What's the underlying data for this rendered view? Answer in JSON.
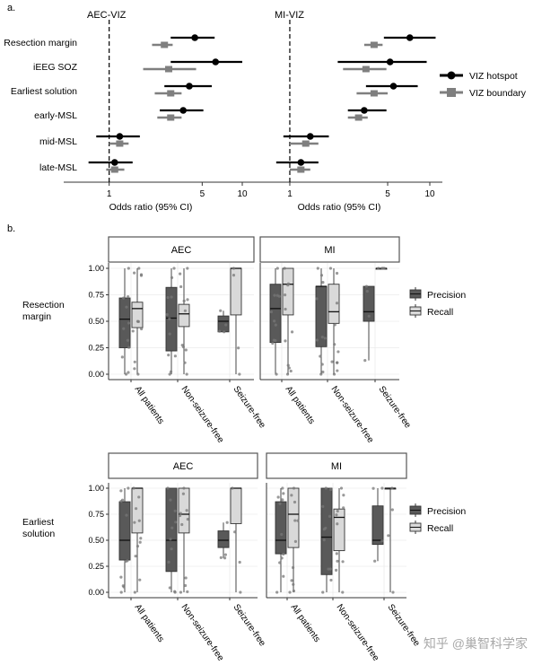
{
  "panel_labels": {
    "a": "a.",
    "b": "b."
  },
  "watermark": "知乎 @巢智科学家",
  "colors": {
    "hotspot": "#000000",
    "boundary": "#7f7f7f",
    "precision": "#595959",
    "recall": "#d9d9d9",
    "point": "#777777"
  },
  "forest": {
    "rows": [
      "Resection margin",
      "iEEG SOZ",
      "Earliest solution",
      "early-MSL",
      "mid-MSL",
      "late-MSL"
    ],
    "xlabel": "Odds ratio (95% CI)",
    "ticks": [
      1,
      5,
      10
    ],
    "legend": {
      "hotspot": "VIZ hotspot",
      "boundary": "VIZ boundary"
    }
  },
  "box": {
    "yticks": [
      "0.00",
      "0.25",
      "0.50",
      "0.75",
      "1.00"
    ],
    "xcats": [
      "All patients",
      "Non-seizure-free",
      "Seizure-free"
    ],
    "legend": {
      "precision": "Precision",
      "recall": "Recall"
    },
    "rows": [
      {
        "label_lines": [
          "Resection",
          "margin"
        ],
        "strips": [
          "AEC",
          "MI"
        ]
      },
      {
        "label_lines": [
          "Earliest",
          "solution"
        ],
        "strips": [
          "AEC",
          "MI"
        ]
      }
    ]
  },
  "chart_data": [
    {
      "type": "forest",
      "title": "AEC-VIZ",
      "xlabel": "Odds ratio (95% CI)",
      "xscale": "log",
      "reference_line": 1,
      "categories": [
        "Resection margin",
        "iEEG SOZ",
        "Earliest solution",
        "early-MSL",
        "mid-MSL",
        "late-MSL"
      ],
      "series": [
        {
          "name": "VIZ hotspot",
          "estimate": [
            4.4,
            6.3,
            4.0,
            3.6,
            1.2,
            1.1
          ],
          "ci_low": [
            2.9,
            2.9,
            2.6,
            2.4,
            0.8,
            0.7
          ],
          "ci_high": [
            6.2,
            10.0,
            5.9,
            5.1,
            1.7,
            1.5
          ]
        },
        {
          "name": "VIZ boundary",
          "estimate": [
            2.6,
            2.8,
            2.9,
            2.9,
            1.2,
            1.1
          ],
          "ci_low": [
            2.1,
            1.8,
            2.2,
            2.3,
            1.0,
            0.95
          ],
          "ci_high": [
            3.0,
            4.5,
            3.5,
            3.5,
            1.4,
            1.3
          ]
        }
      ]
    },
    {
      "type": "forest",
      "title": "MI-VIZ",
      "xlabel": "Odds ratio (95% CI)",
      "xscale": "log",
      "reference_line": 1,
      "categories": [
        "Resection margin",
        "iEEG SOZ",
        "Earliest solution",
        "early-MSL",
        "mid-MSL",
        "late-MSL"
      ],
      "series": [
        {
          "name": "VIZ hotspot",
          "estimate": [
            7.2,
            5.2,
            5.5,
            3.4,
            1.4,
            1.2
          ],
          "ci_low": [
            4.7,
            2.2,
            3.5,
            2.6,
            0.9,
            0.8
          ],
          "ci_high": [
            11.0,
            9.5,
            8.2,
            4.9,
            1.9,
            1.6
          ]
        },
        {
          "name": "VIZ boundary",
          "estimate": [
            4.0,
            3.5,
            4.0,
            3.1,
            1.3,
            1.2
          ],
          "ci_low": [
            3.4,
            2.4,
            3.0,
            2.6,
            1.0,
            1.0
          ],
          "ci_high": [
            4.6,
            4.9,
            5.0,
            3.6,
            1.6,
            1.4
          ]
        }
      ]
    },
    {
      "type": "boxplot",
      "row": "Resection margin",
      "panel": "AEC",
      "categories": [
        "All patients",
        "Non-seizure-free",
        "Seizure-free"
      ],
      "ylim": [
        0,
        1
      ],
      "series": [
        {
          "name": "Precision",
          "q1": [
            0.25,
            0.22,
            0.4
          ],
          "median": [
            0.52,
            0.53,
            0.5
          ],
          "q3": [
            0.72,
            0.82,
            0.55
          ],
          "whisker_low": [
            0.0,
            0.0,
            0.4
          ],
          "whisker_high": [
            1.0,
            1.0,
            0.6
          ]
        },
        {
          "name": "Recall",
          "q1": [
            0.44,
            0.45,
            0.56
          ],
          "median": [
            0.62,
            0.57,
            1.0
          ],
          "q3": [
            0.68,
            0.66,
            1.0
          ],
          "whisker_low": [
            0.0,
            0.0,
            0.0
          ],
          "whisker_high": [
            1.0,
            1.0,
            1.0
          ]
        }
      ]
    },
    {
      "type": "boxplot",
      "row": "Resection margin",
      "panel": "MI",
      "categories": [
        "All patients",
        "Non-seizure-free",
        "Seizure-free"
      ],
      "ylim": [
        0,
        1
      ],
      "series": [
        {
          "name": "Precision",
          "q1": [
            0.3,
            0.26,
            0.5
          ],
          "median": [
            0.62,
            0.83,
            0.59
          ],
          "q3": [
            0.85,
            0.83,
            0.83
          ],
          "whisker_low": [
            0.0,
            0.0,
            0.13
          ],
          "whisker_high": [
            1.0,
            1.0,
            0.83
          ]
        },
        {
          "name": "Recall",
          "q1": [
            0.56,
            0.48,
            1.0
          ],
          "median": [
            0.85,
            0.59,
            1.0
          ],
          "q3": [
            1.0,
            0.85,
            1.0
          ],
          "whisker_low": [
            0.0,
            0.0,
            1.0
          ],
          "whisker_high": [
            1.0,
            1.0,
            1.0
          ]
        }
      ]
    },
    {
      "type": "boxplot",
      "row": "Earliest solution",
      "panel": "AEC",
      "categories": [
        "All patients",
        "Non-seizure-free",
        "Seizure-free"
      ],
      "ylim": [
        0,
        1
      ],
      "series": [
        {
          "name": "Precision",
          "q1": [
            0.31,
            0.2,
            0.43
          ],
          "median": [
            0.5,
            0.5,
            0.5
          ],
          "q3": [
            0.87,
            1.0,
            0.59
          ],
          "whisker_low": [
            0.0,
            0.0,
            0.33
          ],
          "whisker_high": [
            1.0,
            1.0,
            0.67
          ]
        },
        {
          "name": "Recall",
          "q1": [
            0.57,
            0.57,
            0.66
          ],
          "median": [
            1.0,
            0.75,
            1.0
          ],
          "q3": [
            1.0,
            1.0,
            1.0
          ],
          "whisker_low": [
            0.0,
            0.0,
            0.0
          ],
          "whisker_high": [
            1.0,
            1.0,
            1.0
          ]
        }
      ]
    },
    {
      "type": "boxplot",
      "row": "Earliest solution",
      "panel": "MI",
      "categories": [
        "All patients",
        "Non-seizure-free",
        "Seizure-free"
      ],
      "ylim": [
        0,
        1
      ],
      "series": [
        {
          "name": "Precision",
          "q1": [
            0.37,
            0.17,
            0.46
          ],
          "median": [
            0.5,
            0.53,
            0.5
          ],
          "q3": [
            0.87,
            1.0,
            0.83
          ],
          "whisker_low": [
            0.0,
            0.0,
            0.3
          ],
          "whisker_high": [
            1.0,
            1.0,
            1.0
          ]
        },
        {
          "name": "Recall",
          "q1": [
            0.43,
            0.4,
            1.0
          ],
          "median": [
            0.75,
            0.72,
            1.0
          ],
          "q3": [
            1.0,
            0.8,
            1.0
          ],
          "whisker_low": [
            0.0,
            0.0,
            0.0
          ],
          "whisker_high": [
            1.0,
            1.0,
            1.0
          ]
        }
      ]
    }
  ]
}
